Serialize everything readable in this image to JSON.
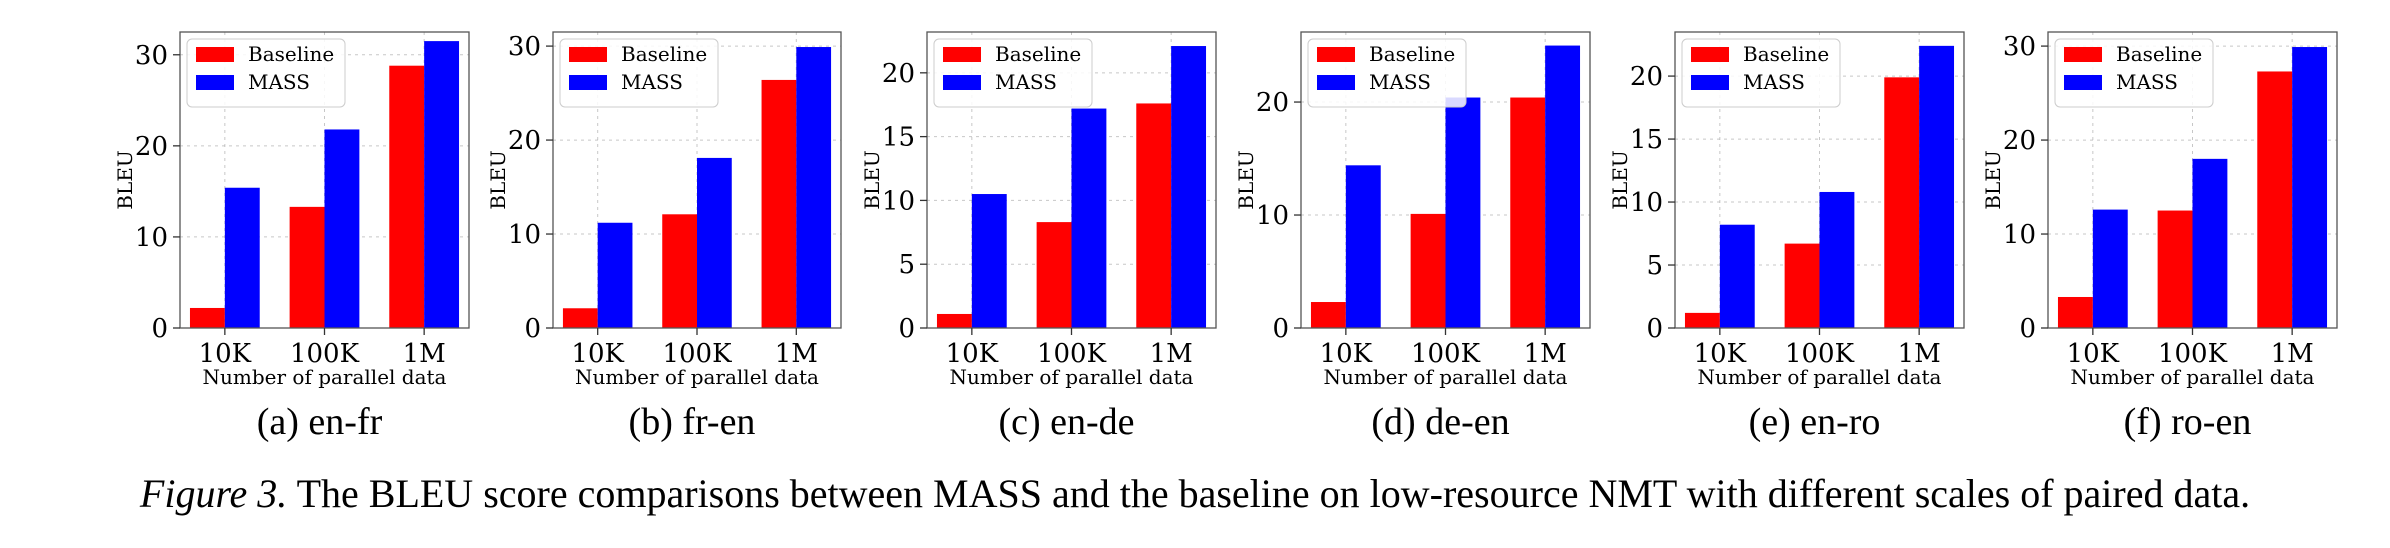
{
  "chart_data": [
    {
      "type": "bar",
      "ylabel": "BLEU",
      "xlabel": "Number of parallel data",
      "categories": [
        "10K",
        "100K",
        "1M"
      ],
      "ylim": [
        0,
        32.5
      ],
      "yticks": [
        0,
        10,
        20,
        30
      ],
      "grid": true,
      "legend_position": "top-left",
      "series": [
        {
          "name": "Baseline",
          "values": [
            2.2,
            13.3,
            28.8
          ]
        },
        {
          "name": "MASS",
          "values": [
            15.4,
            21.8,
            31.5
          ]
        }
      ],
      "caption": "(a) en-fr"
    },
    {
      "type": "bar",
      "ylabel": "BLEU",
      "xlabel": "Number of parallel data",
      "categories": [
        "10K",
        "100K",
        "1M"
      ],
      "ylim": [
        0,
        31.5
      ],
      "yticks": [
        0,
        10,
        20,
        30
      ],
      "grid": true,
      "legend_position": "top-left",
      "series": [
        {
          "name": "Baseline",
          "values": [
            2.1,
            12.1,
            26.4
          ]
        },
        {
          "name": "MASS",
          "values": [
            11.2,
            18.1,
            29.9
          ]
        }
      ],
      "caption": "(b) fr-en"
    },
    {
      "type": "bar",
      "ylabel": "BLEU",
      "xlabel": "Number of parallel data",
      "categories": [
        "10K",
        "100K",
        "1M"
      ],
      "ylim": [
        0,
        23.2
      ],
      "yticks": [
        0,
        5,
        10,
        15,
        20
      ],
      "grid": true,
      "legend_position": "top-left",
      "series": [
        {
          "name": "Baseline",
          "values": [
            1.1,
            8.3,
            17.6
          ]
        },
        {
          "name": "MASS",
          "values": [
            10.5,
            17.2,
            22.1
          ]
        }
      ],
      "caption": "(c) en-de"
    },
    {
      "type": "bar",
      "ylabel": "BLEU",
      "xlabel": "Number of parallel data",
      "categories": [
        "10K",
        "100K",
        "1M"
      ],
      "ylim": [
        0,
        26.2
      ],
      "yticks": [
        0,
        10,
        20
      ],
      "grid": true,
      "legend_position": "top-left",
      "series": [
        {
          "name": "Baseline",
          "values": [
            2.3,
            10.1,
            20.4
          ]
        },
        {
          "name": "MASS",
          "values": [
            14.4,
            20.4,
            25.0
          ]
        }
      ],
      "caption": "(d) de-en"
    },
    {
      "type": "bar",
      "ylabel": "BLEU",
      "xlabel": "Number of parallel data",
      "categories": [
        "10K",
        "100K",
        "1M"
      ],
      "ylim": [
        0,
        23.5
      ],
      "yticks": [
        0,
        5,
        10,
        15,
        20
      ],
      "grid": true,
      "legend_position": "top-left",
      "series": [
        {
          "name": "Baseline",
          "values": [
            1.2,
            6.7,
            19.9
          ]
        },
        {
          "name": "MASS",
          "values": [
            8.2,
            10.8,
            22.4
          ]
        }
      ],
      "caption": "(e) en-ro"
    },
    {
      "type": "bar",
      "ylabel": "BLEU",
      "xlabel": "Number of parallel data",
      "categories": [
        "10K",
        "100K",
        "1M"
      ],
      "ylim": [
        0,
        31.5
      ],
      "yticks": [
        0,
        10,
        20,
        30
      ],
      "grid": true,
      "legend_position": "top-left",
      "series": [
        {
          "name": "Baseline",
          "values": [
            3.3,
            12.5,
            27.3
          ]
        },
        {
          "name": "MASS",
          "values": [
            12.6,
            18.0,
            29.9
          ]
        }
      ],
      "caption": "(f) ro-en"
    }
  ],
  "colors": {
    "baseline": "#ff0000",
    "mass": "#0000ff"
  },
  "caption": {
    "label": "Figure 3.",
    "text": " The BLEU score comparisons between MASS and the baseline on low-resource NMT with different scales of paired data."
  }
}
